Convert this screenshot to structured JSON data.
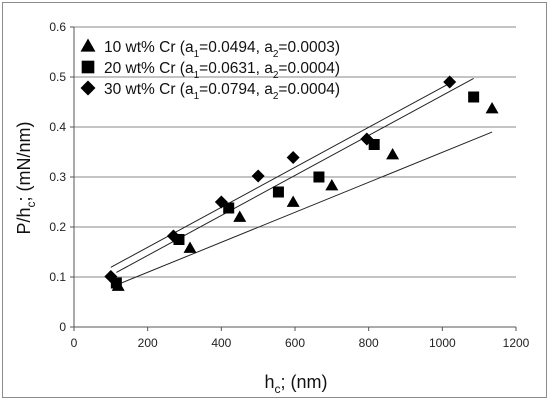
{
  "chart_data": {
    "type": "scatter",
    "xlabel": "h",
    "xlabel_sub": "c",
    "xlabel_rest": "; (nm)",
    "ylabel": "P/h",
    "ylabel_sub": "c",
    "ylabel_rest": "; (mN/nm)",
    "xlim": [
      0,
      1200
    ],
    "ylim": [
      0,
      0.6
    ],
    "xticks": [
      "0",
      "200",
      "400",
      "600",
      "800",
      "1000",
      "1200"
    ],
    "yticks": [
      "0",
      "0.1",
      "0.2",
      "0.3",
      "0.4",
      "0.5",
      "0.6"
    ],
    "grid": "horizontal",
    "legend_position": "top-left",
    "series": [
      {
        "name": "10 wt% Cr",
        "params": {
          "a1": "0.0494",
          "a2": "0.0003"
        },
        "marker": "triangle",
        "x": [
          120,
          315,
          450,
          595,
          700,
          865,
          1135
        ],
        "y": [
          0.082,
          0.158,
          0.22,
          0.25,
          0.283,
          0.345,
          0.437
        ],
        "fit": {
          "intercept": 0.0494,
          "slope": 0.0003
        }
      },
      {
        "name": "20 wt% Cr",
        "params": {
          "a1": "0.0631",
          "a2": "0.0004"
        },
        "marker": "square",
        "x": [
          115,
          285,
          420,
          555,
          665,
          815,
          1085
        ],
        "y": [
          0.088,
          0.175,
          0.238,
          0.27,
          0.3,
          0.365,
          0.46
        ],
        "fit": {
          "intercept": 0.0631,
          "slope": 0.0004
        }
      },
      {
        "name": "30 wt% Cr",
        "params": {
          "a1": "0.0794",
          "a2": "0.0004"
        },
        "marker": "diamond",
        "x": [
          100,
          270,
          400,
          500,
          595,
          795,
          1020
        ],
        "y": [
          0.101,
          0.182,
          0.25,
          0.302,
          0.339,
          0.376,
          0.49
        ],
        "fit": {
          "intercept": 0.0794,
          "slope": 0.0004
        }
      }
    ]
  }
}
